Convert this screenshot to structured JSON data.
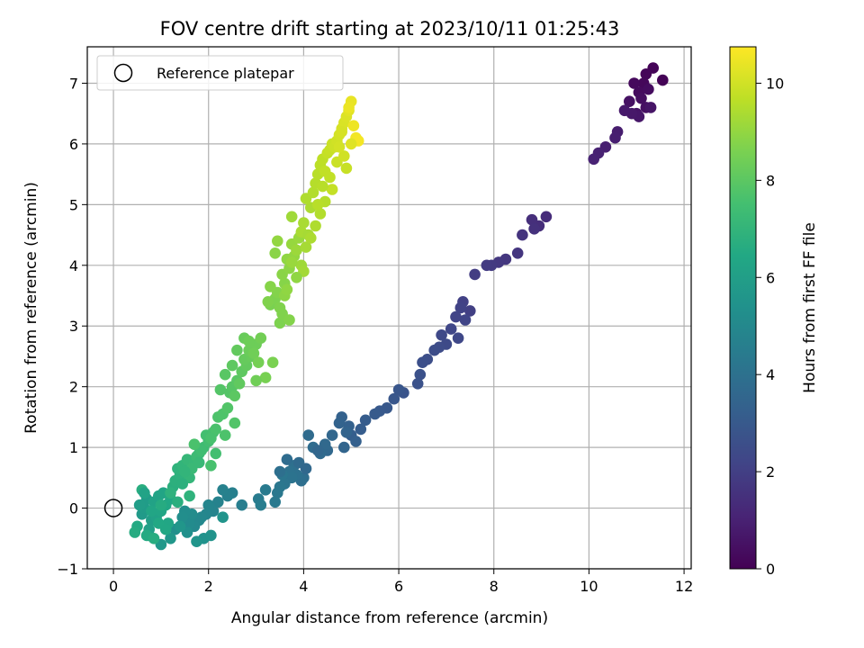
{
  "chart_data": {
    "type": "scatter",
    "title": "FOV centre drift starting at 2023/10/11 01:25:43",
    "xlabel": "Angular distance from reference (arcmin)",
    "ylabel": "Rotation from reference (arcmin)",
    "xlim": [
      -0.55,
      12.15
    ],
    "ylim": [
      -1.0,
      7.6
    ],
    "xticks": [
      0,
      2,
      4,
      6,
      8,
      10,
      12
    ],
    "yticks": [
      -1,
      0,
      1,
      2,
      3,
      4,
      5,
      6,
      7
    ],
    "grid": true,
    "legend": {
      "position": "top-left",
      "entries": [
        "Reference platepar"
      ]
    },
    "reference_point": {
      "x": 0,
      "y": 0
    },
    "colorbar": {
      "label": "Hours from first FF file",
      "range": [
        0,
        10.75
      ],
      "ticks": [
        0,
        2,
        4,
        6,
        8,
        10
      ],
      "colormap": "viridis"
    },
    "point_colors_by": "hours",
    "series": [
      {
        "x": [
          11.55,
          11.35,
          11.2,
          11.15,
          10.95,
          11.05,
          11.25,
          11.1,
          11.2,
          10.85,
          11.0,
          11.3,
          11.05,
          10.9,
          10.75,
          10.6,
          10.55,
          10.35,
          10.2,
          10.1
        ],
        "y": [
          7.05,
          7.25,
          7.15,
          7.0,
          7.0,
          6.85,
          6.9,
          6.75,
          6.6,
          6.7,
          6.5,
          6.6,
          6.45,
          6.5,
          6.55,
          6.2,
          6.1,
          5.95,
          5.85,
          5.75
        ],
        "hours": [
          0.05,
          0.1,
          0.15,
          0.2,
          0.25,
          0.3,
          0.35,
          0.4,
          0.45,
          0.5,
          0.55,
          0.6,
          0.65,
          0.7,
          0.75,
          0.85,
          0.9,
          0.95,
          1.0,
          1.05
        ]
      },
      {
        "x": [
          9.1,
          8.95,
          8.8,
          8.85,
          8.6,
          8.5,
          8.25,
          8.1,
          7.95,
          7.85,
          7.6,
          7.5,
          7.35,
          7.3,
          7.2,
          7.4,
          7.1,
          7.25,
          6.9,
          7.0,
          6.85,
          6.75,
          6.6,
          6.5,
          6.45,
          6.4,
          6.1,
          6.0,
          5.9,
          5.75,
          5.6,
          5.5,
          5.3,
          5.2,
          5.0,
          5.1,
          4.95,
          4.8,
          4.75,
          4.9,
          4.85,
          4.6,
          4.5,
          4.45,
          4.35,
          4.1,
          4.2
        ],
        "y": [
          4.8,
          4.65,
          4.75,
          4.6,
          4.5,
          4.2,
          4.1,
          4.05,
          4.0,
          4.0,
          3.85,
          3.25,
          3.4,
          3.3,
          3.15,
          3.1,
          2.95,
          2.8,
          2.85,
          2.7,
          2.65,
          2.6,
          2.45,
          2.4,
          2.2,
          2.05,
          1.9,
          1.95,
          1.8,
          1.65,
          1.6,
          1.55,
          1.45,
          1.3,
          1.2,
          1.1,
          1.35,
          1.5,
          1.4,
          1.25,
          1.0,
          1.2,
          0.95,
          1.05,
          0.9,
          1.2,
          1.0
        ],
        "hours": [
          1.35,
          1.4,
          1.45,
          1.5,
          1.6,
          1.65,
          1.7,
          1.75,
          1.8,
          1.85,
          1.9,
          2.0,
          2.05,
          2.1,
          2.15,
          2.2,
          2.25,
          2.3,
          2.35,
          2.4,
          2.45,
          2.5,
          2.55,
          2.6,
          2.65,
          2.7,
          2.8,
          2.85,
          2.9,
          2.95,
          3.0,
          3.05,
          3.1,
          3.15,
          3.2,
          3.25,
          3.3,
          3.35,
          3.4,
          3.45,
          3.5,
          3.55,
          3.6,
          3.65,
          3.7,
          3.75,
          3.8
        ]
      },
      {
        "x": [
          4.0,
          3.95,
          3.8,
          3.85,
          3.7,
          3.75,
          3.6,
          3.55,
          3.5,
          3.45,
          3.4,
          3.2,
          3.05,
          3.1,
          2.7,
          2.5,
          2.4,
          2.3,
          2.2,
          2.1,
          2.0,
          1.95,
          1.85,
          1.8,
          1.7,
          1.6,
          1.65,
          1.5,
          1.45,
          1.3,
          1.55,
          1.9,
          2.05,
          2.3,
          1.75,
          1.4,
          1.2,
          1.0,
          0.75,
          3.5,
          3.65,
          3.9,
          4.05,
          4.3
        ],
        "y": [
          0.5,
          0.45,
          0.7,
          0.55,
          0.6,
          0.5,
          0.4,
          0.55,
          0.35,
          0.25,
          0.1,
          0.3,
          0.15,
          0.05,
          0.05,
          0.25,
          0.2,
          0.3,
          0.1,
          -0.05,
          0.05,
          -0.1,
          -0.15,
          -0.2,
          -0.3,
          -0.25,
          -0.1,
          -0.05,
          -0.15,
          -0.35,
          -0.4,
          -0.5,
          -0.45,
          -0.15,
          -0.55,
          -0.3,
          -0.5,
          -0.6,
          -0.45,
          0.6,
          0.8,
          0.75,
          0.65,
          0.95
        ],
        "hours": [
          3.85,
          3.9,
          3.95,
          4.0,
          4.05,
          4.1,
          4.15,
          4.2,
          4.25,
          4.3,
          4.35,
          4.4,
          4.45,
          4.5,
          4.55,
          4.6,
          4.65,
          4.7,
          4.75,
          4.8,
          4.85,
          4.9,
          4.95,
          5.0,
          5.05,
          5.1,
          5.15,
          5.2,
          5.25,
          5.3,
          5.35,
          5.4,
          5.45,
          5.5,
          5.55,
          5.6,
          5.65,
          5.7,
          5.75,
          3.92,
          3.8,
          3.7,
          3.62,
          3.55
        ]
      },
      {
        "x": [
          0.6,
          0.65,
          0.7,
          0.55,
          0.8,
          0.75,
          0.9,
          0.85,
          0.95,
          1.05,
          1.0,
          1.15,
          1.1,
          1.2,
          0.5,
          0.7,
          0.45,
          0.85,
          0.6,
          1.25,
          1.3,
          1.4,
          1.35,
          1.5,
          1.45,
          1.6,
          1.55,
          1.7,
          1.65,
          1.8,
          1.75,
          1.9,
          1.85,
          2.0,
          1.95,
          2.1,
          2.05,
          1.6,
          1.45,
          1.2,
          1.35,
          1.5,
          1.8,
          2.15,
          1.0,
          0.95,
          1.1,
          0.8,
          0.65,
          1.7
        ],
        "y": [
          -0.1,
          0.0,
          0.15,
          0.05,
          -0.2,
          -0.35,
          -0.15,
          0.1,
          0.2,
          0.25,
          -0.05,
          -0.25,
          0.05,
          0.15,
          -0.3,
          -0.45,
          -0.4,
          -0.5,
          0.3,
          0.35,
          0.45,
          0.55,
          0.65,
          0.6,
          0.7,
          0.5,
          0.8,
          0.75,
          0.65,
          0.9,
          0.85,
          1.0,
          0.95,
          1.1,
          1.2,
          1.25,
          0.7,
          0.2,
          0.4,
          0.25,
          0.1,
          0.6,
          0.75,
          0.9,
          0.05,
          -0.25,
          -0.35,
          -0.05,
          0.25,
          1.05
        ],
        "hours": [
          5.8,
          5.85,
          5.9,
          5.95,
          6.0,
          6.05,
          6.1,
          6.15,
          6.2,
          6.25,
          6.3,
          6.35,
          6.4,
          6.45,
          6.5,
          6.55,
          6.6,
          6.65,
          6.7,
          6.75,
          6.8,
          6.85,
          6.9,
          6.95,
          7.0,
          7.05,
          7.1,
          7.15,
          7.2,
          7.25,
          7.3,
          7.35,
          7.4,
          7.45,
          7.5,
          7.55,
          7.6,
          6.9,
          6.8,
          6.85,
          6.75,
          7.0,
          7.2,
          7.5,
          6.6,
          6.45,
          6.4,
          6.3,
          6.2,
          7.65
        ]
      },
      {
        "x": [
          2.2,
          2.3,
          2.4,
          2.45,
          2.5,
          2.6,
          2.55,
          2.7,
          2.65,
          2.8,
          2.75,
          2.9,
          2.85,
          3.0,
          2.95,
          3.1,
          3.05,
          3.2,
          2.25,
          2.35,
          2.5,
          2.6,
          2.75,
          2.85,
          3.35,
          3.0,
          2.15,
          2.05,
          2.35,
          2.55
        ],
        "y": [
          1.5,
          1.55,
          1.65,
          1.9,
          2.0,
          2.1,
          1.85,
          2.25,
          2.05,
          2.35,
          2.45,
          2.5,
          2.6,
          2.7,
          2.55,
          2.8,
          2.4,
          2.15,
          1.95,
          2.2,
          2.35,
          2.6,
          2.8,
          2.75,
          2.4,
          2.1,
          1.3,
          1.15,
          1.2,
          1.4
        ],
        "hours": [
          7.7,
          7.75,
          7.8,
          7.85,
          7.9,
          7.95,
          8.0,
          8.05,
          8.1,
          8.15,
          8.2,
          8.25,
          8.3,
          8.35,
          8.4,
          8.45,
          8.5,
          8.55,
          7.85,
          7.95,
          8.05,
          8.15,
          8.25,
          8.35,
          8.6,
          8.4,
          7.65,
          7.6,
          7.7,
          7.8
        ]
      },
      {
        "x": [
          3.3,
          3.4,
          3.5,
          3.45,
          3.6,
          3.55,
          3.7,
          3.65,
          3.8,
          3.75,
          3.9,
          3.85,
          3.95,
          4.0,
          4.05,
          3.5,
          3.55,
          3.7,
          3.3,
          3.4,
          3.6,
          3.85,
          3.45,
          3.25,
          3.95,
          3.65,
          3.75
        ],
        "y": [
          3.35,
          3.45,
          3.3,
          3.55,
          3.7,
          3.85,
          3.95,
          4.1,
          4.15,
          4.35,
          4.45,
          4.25,
          4.0,
          3.9,
          4.3,
          3.05,
          3.2,
          3.1,
          3.65,
          4.2,
          3.5,
          3.8,
          4.4,
          3.4,
          4.55,
          3.6,
          4.05
        ],
        "hours": [
          8.6,
          8.65,
          8.7,
          8.75,
          8.8,
          8.85,
          8.9,
          8.95,
          9.0,
          9.05,
          9.1,
          9.15,
          9.2,
          9.25,
          9.3,
          8.65,
          8.7,
          8.75,
          8.8,
          8.85,
          8.9,
          8.95,
          9.0,
          8.7,
          9.35,
          8.95,
          9.1
        ]
      },
      {
        "x": [
          4.1,
          4.0,
          4.15,
          4.05,
          4.2,
          4.25,
          4.3,
          4.35,
          4.4,
          4.45,
          4.5,
          4.55,
          4.6,
          4.65,
          4.7,
          4.75,
          4.8,
          4.85,
          4.9,
          4.95,
          5.0,
          5.05,
          5.1,
          5.15,
          4.55,
          4.7,
          4.9,
          4.45,
          4.35,
          4.6,
          4.8,
          5.0,
          4.95,
          4.25,
          4.15,
          4.85,
          4.4,
          3.75,
          4.3,
          4.75
        ],
        "y": [
          4.5,
          4.7,
          4.95,
          5.1,
          5.2,
          5.35,
          5.5,
          5.65,
          5.75,
          5.55,
          5.85,
          5.9,
          6.0,
          5.95,
          6.05,
          6.15,
          6.25,
          6.35,
          6.45,
          6.55,
          6.7,
          6.3,
          6.1,
          6.05,
          5.45,
          5.7,
          5.6,
          5.05,
          4.85,
          5.25,
          6.2,
          6.0,
          6.6,
          4.65,
          4.45,
          5.8,
          5.3,
          4.8,
          5.0,
          5.95
        ],
        "hours": [
          9.3,
          9.35,
          9.4,
          9.45,
          9.5,
          9.55,
          9.6,
          9.65,
          9.7,
          9.75,
          9.8,
          9.85,
          9.9,
          9.95,
          10.0,
          10.05,
          10.1,
          10.15,
          10.2,
          10.3,
          10.4,
          10.5,
          10.55,
          10.6,
          9.75,
          9.9,
          9.85,
          9.55,
          9.5,
          9.8,
          10.1,
          10.25,
          10.45,
          9.45,
          9.4,
          10.0,
          9.6,
          9.2,
          9.6,
          10.05
        ]
      }
    ]
  }
}
